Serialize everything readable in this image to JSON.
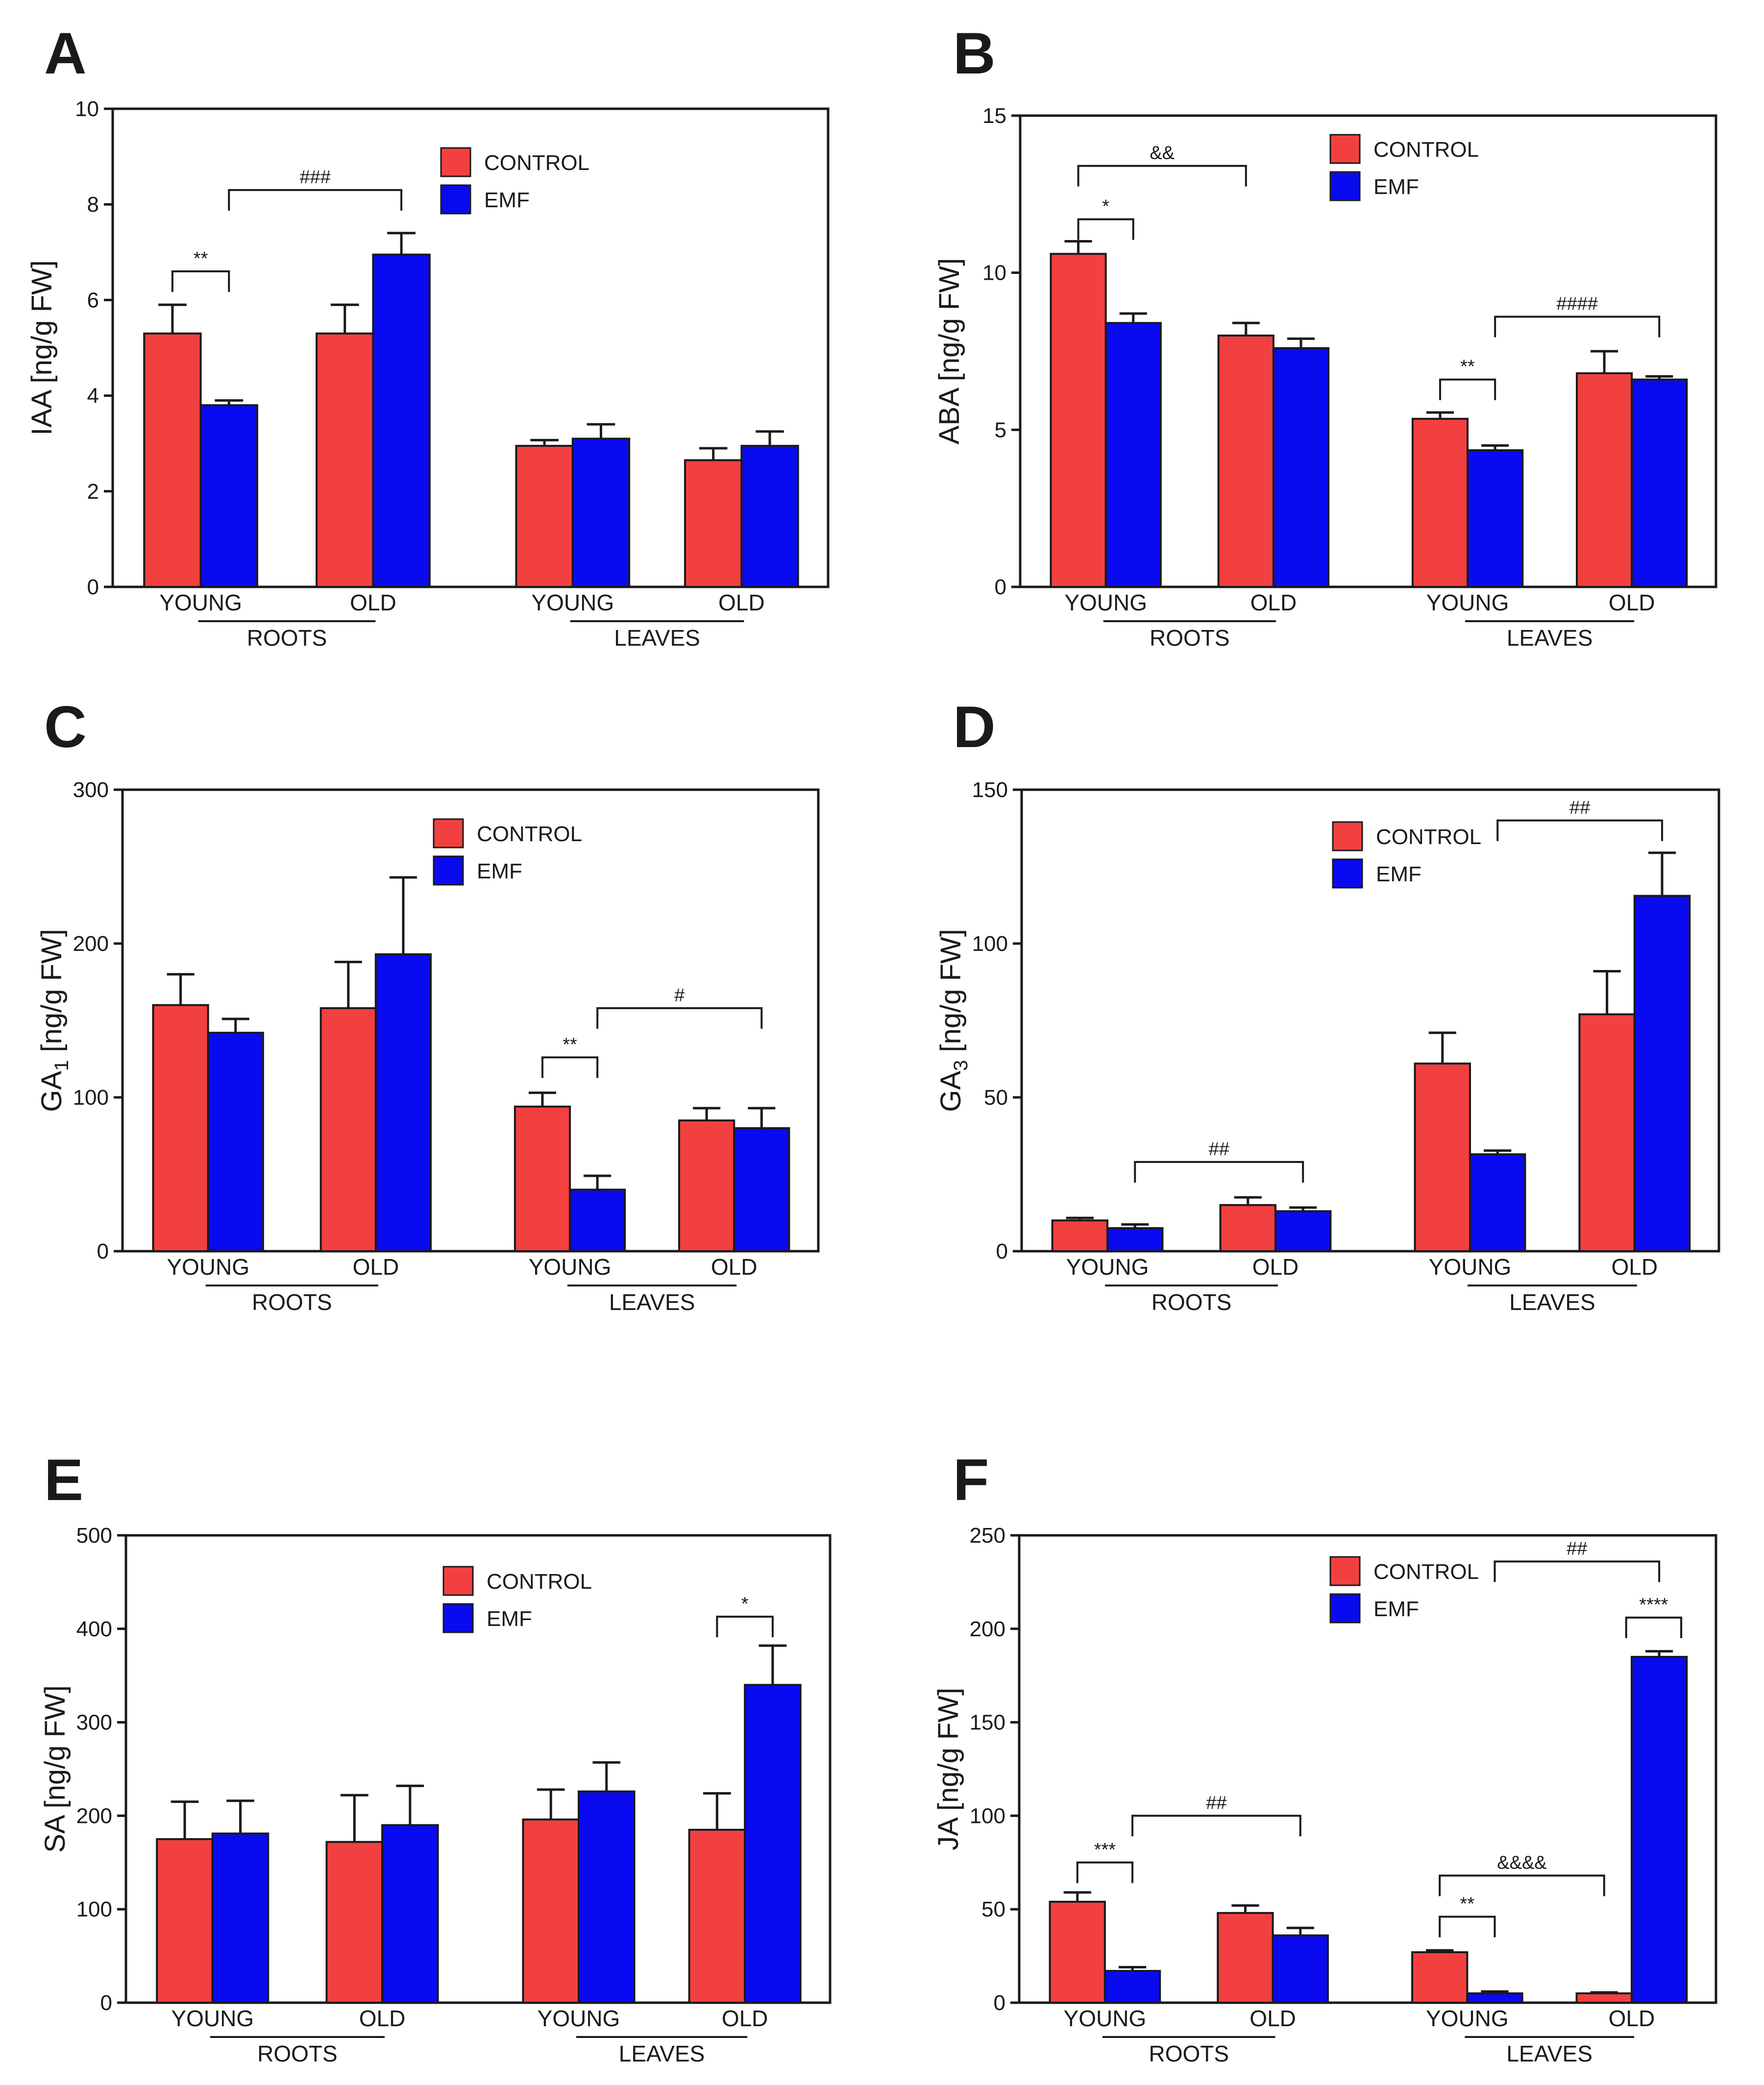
{
  "colors": {
    "control": "#f24040",
    "emf": "#0a0af0",
    "axis": "#1a1a1a"
  },
  "legend": {
    "control": "CONTROL",
    "emf": "EMF"
  },
  "chart_data": [
    {
      "panel": "A",
      "type": "bar",
      "ylabel": "IAA [ng/g FW]",
      "ylabel_sub": "",
      "ylim": [
        0,
        10
      ],
      "yticks": [
        "0",
        "2",
        "4",
        "6",
        "8",
        "10"
      ],
      "ytick_values": [
        0,
        2,
        4,
        6,
        8,
        10
      ],
      "categories": [
        "YOUNG",
        "OLD",
        "YOUNG",
        "OLD"
      ],
      "groups": [
        {
          "name": "ROOTS",
          "categories": [
            0,
            1
          ]
        },
        {
          "name": "LEAVES",
          "categories": [
            2,
            3
          ]
        }
      ],
      "series": [
        {
          "name": "CONTROL",
          "values": [
            5.3,
            5.3,
            2.95,
            2.65
          ],
          "errors": [
            0.6,
            0.6,
            0.12,
            0.25
          ]
        },
        {
          "name": "EMF",
          "values": [
            3.8,
            6.95,
            3.1,
            2.95
          ],
          "errors": [
            0.1,
            0.45,
            0.3,
            0.3
          ]
        }
      ],
      "annotations": [
        {
          "text": "**",
          "from": [
            0,
            "CONTROL"
          ],
          "to": [
            0,
            "EMF"
          ],
          "level": 6.6
        },
        {
          "text": "###",
          "from": [
            0,
            "EMF"
          ],
          "to": [
            1,
            "EMF"
          ],
          "level": 8.3
        }
      ]
    },
    {
      "panel": "B",
      "type": "bar",
      "ylabel": "ABA [ng/g FW]",
      "ylabel_sub": "",
      "ylim": [
        0,
        15
      ],
      "yticks": [
        "0",
        "5",
        "10",
        "15"
      ],
      "ytick_values": [
        0,
        5,
        10,
        15
      ],
      "categories": [
        "YOUNG",
        "OLD",
        "YOUNG",
        "OLD"
      ],
      "groups": [
        {
          "name": "ROOTS",
          "categories": [
            0,
            1
          ]
        },
        {
          "name": "LEAVES",
          "categories": [
            2,
            3
          ]
        }
      ],
      "series": [
        {
          "name": "CONTROL",
          "values": [
            10.6,
            8.0,
            5.35,
            6.8
          ],
          "errors": [
            0.4,
            0.4,
            0.2,
            0.7
          ]
        },
        {
          "name": "EMF",
          "values": [
            8.4,
            7.6,
            4.35,
            6.6
          ],
          "errors": [
            0.3,
            0.3,
            0.15,
            0.1
          ]
        }
      ],
      "annotations": [
        {
          "text": "*",
          "from": [
            0,
            "CONTROL"
          ],
          "to": [
            0,
            "EMF"
          ],
          "level": 11.7
        },
        {
          "text": "&&",
          "from": [
            0,
            "CONTROL"
          ],
          "to": [
            1,
            "CONTROL"
          ],
          "level": 13.4
        },
        {
          "text": "**",
          "from": [
            2,
            "CONTROL"
          ],
          "to": [
            2,
            "EMF"
          ],
          "level": 6.6
        },
        {
          "text": "####",
          "from": [
            2,
            "EMF"
          ],
          "to": [
            3,
            "EMF"
          ],
          "level": 8.6
        }
      ]
    },
    {
      "panel": "C",
      "type": "bar",
      "ylabel": "GA",
      "ylabel_sub": "1",
      "ylim": [
        0,
        300
      ],
      "yticks": [
        "0",
        "100",
        "200",
        "300"
      ],
      "ytick_values": [
        0,
        100,
        200,
        300
      ],
      "categories": [
        "YOUNG",
        "OLD",
        "YOUNG",
        "OLD"
      ],
      "groups": [
        {
          "name": "ROOTS",
          "categories": [
            0,
            1
          ]
        },
        {
          "name": "LEAVES",
          "categories": [
            2,
            3
          ]
        }
      ],
      "series": [
        {
          "name": "CONTROL",
          "values": [
            160,
            158,
            94,
            85
          ],
          "errors": [
            20,
            30,
            9,
            8
          ]
        },
        {
          "name": "EMF",
          "values": [
            142,
            193,
            40,
            80
          ],
          "errors": [
            9,
            50,
            9,
            13
          ]
        }
      ],
      "annotations": [
        {
          "text": "**",
          "from": [
            2,
            "CONTROL"
          ],
          "to": [
            2,
            "EMF"
          ],
          "level": 126
        },
        {
          "text": "#",
          "from": [
            2,
            "EMF"
          ],
          "to": [
            3,
            "EMF"
          ],
          "level": 158
        }
      ]
    },
    {
      "panel": "D",
      "type": "bar",
      "ylabel": "GA",
      "ylabel_sub": "3",
      "ylim": [
        0,
        150
      ],
      "yticks": [
        "0",
        "50",
        "100",
        "150"
      ],
      "ytick_values": [
        0,
        50,
        100,
        150
      ],
      "categories": [
        "YOUNG",
        "OLD",
        "YOUNG",
        "OLD"
      ],
      "groups": [
        {
          "name": "ROOTS",
          "categories": [
            0,
            1
          ]
        },
        {
          "name": "LEAVES",
          "categories": [
            2,
            3
          ]
        }
      ],
      "series": [
        {
          "name": "CONTROL",
          "values": [
            10,
            15,
            61,
            77
          ],
          "errors": [
            0.8,
            2.5,
            10,
            14
          ]
        },
        {
          "name": "EMF",
          "values": [
            7.5,
            13,
            31.5,
            115.5
          ],
          "errors": [
            1.2,
            1.2,
            1.2,
            14
          ]
        }
      ],
      "annotations": [
        {
          "text": "##",
          "from": [
            0,
            "EMF"
          ],
          "to": [
            1,
            "EMF"
          ],
          "level": 29
        },
        {
          "text": "##",
          "from": [
            2,
            "EMF"
          ],
          "to": [
            3,
            "EMF"
          ],
          "level": 140
        }
      ]
    },
    {
      "panel": "E",
      "type": "bar",
      "ylabel": "SA [ng/g FW]",
      "ylabel_sub": "",
      "ylim": [
        0,
        500
      ],
      "yticks": [
        "0",
        "100",
        "200",
        "300",
        "400",
        "500"
      ],
      "ytick_values": [
        0,
        100,
        200,
        300,
        400,
        500
      ],
      "categories": [
        "YOUNG",
        "OLD",
        "YOUNG",
        "OLD"
      ],
      "groups": [
        {
          "name": "ROOTS",
          "categories": [
            0,
            1
          ]
        },
        {
          "name": "LEAVES",
          "categories": [
            2,
            3
          ]
        }
      ],
      "series": [
        {
          "name": "CONTROL",
          "values": [
            175,
            172,
            196,
            185
          ],
          "errors": [
            40,
            50,
            32,
            39
          ]
        },
        {
          "name": "EMF",
          "values": [
            181,
            190,
            226,
            340
          ],
          "errors": [
            35,
            42,
            31,
            42
          ]
        }
      ],
      "annotations": [
        {
          "text": "*",
          "from": [
            3,
            "CONTROL"
          ],
          "to": [
            3,
            "EMF"
          ],
          "level": 413
        }
      ]
    },
    {
      "panel": "F",
      "type": "bar",
      "ylabel": "JA [ng/g FW]",
      "ylabel_sub": "",
      "ylim": [
        0,
        250
      ],
      "yticks": [
        "0",
        "50",
        "100",
        "150",
        "200",
        "250"
      ],
      "ytick_values": [
        0,
        50,
        100,
        150,
        200,
        250
      ],
      "categories": [
        "YOUNG",
        "OLD",
        "YOUNG",
        "OLD"
      ],
      "groups": [
        {
          "name": "ROOTS",
          "categories": [
            0,
            1
          ]
        },
        {
          "name": "LEAVES",
          "categories": [
            2,
            3
          ]
        }
      ],
      "series": [
        {
          "name": "CONTROL",
          "values": [
            54,
            48,
            27,
            5
          ],
          "errors": [
            5,
            4,
            1,
            0.5
          ]
        },
        {
          "name": "EMF",
          "values": [
            17,
            36,
            5,
            185
          ],
          "errors": [
            2,
            4,
            1,
            3
          ]
        }
      ],
      "annotations": [
        {
          "text": "***",
          "from": [
            0,
            "CONTROL"
          ],
          "to": [
            0,
            "EMF"
          ],
          "level": 75
        },
        {
          "text": "##",
          "from": [
            0,
            "EMF"
          ],
          "to": [
            1,
            "EMF"
          ],
          "level": 100
        },
        {
          "text": "**",
          "from": [
            2,
            "CONTROL"
          ],
          "to": [
            2,
            "EMF"
          ],
          "level": 46
        },
        {
          "text": "&&&&",
          "from": [
            2,
            "CONTROL"
          ],
          "to": [
            3,
            "CONTROL"
          ],
          "level": 68
        },
        {
          "text": "****",
          "from": [
            3,
            "EMF"
          ],
          "to": [
            3,
            "EMF_INNER"
          ],
          "level": 206
        },
        {
          "text": "##",
          "from": [
            2,
            "EMF"
          ],
          "to": [
            3,
            "EMF"
          ],
          "level": 236
        }
      ]
    }
  ]
}
